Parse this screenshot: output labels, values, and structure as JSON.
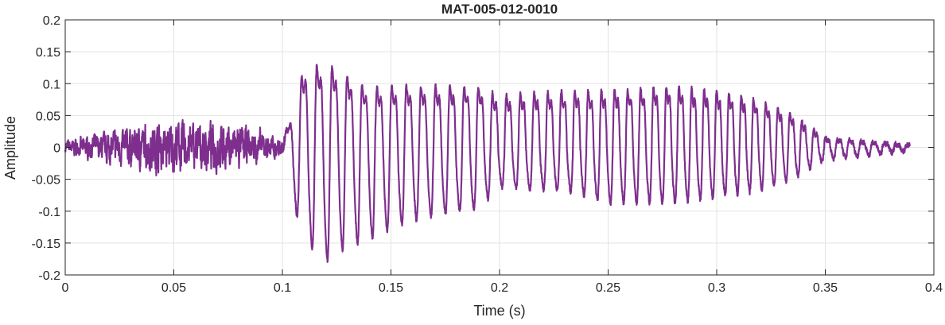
{
  "chart_data": {
    "type": "line",
    "title": "MAT-005-012-0010",
    "xlabel": "Time (s)",
    "ylabel": "Amplitude",
    "xlim": [
      0,
      0.4
    ],
    "ylim": [
      -0.2,
      0.2
    ],
    "grid": true,
    "xticks": [
      0,
      0.05,
      0.1,
      0.15,
      0.2,
      0.25,
      0.3,
      0.35,
      0.4
    ],
    "xtick_labels": [
      "0",
      "0.05",
      "0.1",
      "0.15",
      "0.2",
      "0.25",
      "0.3",
      "0.35",
      "0.4"
    ],
    "yticks": [
      0.2,
      0.15,
      0.1,
      0.05,
      0,
      -0.05,
      -0.1,
      -0.15,
      -0.2
    ],
    "ytick_labels": [
      "0.2",
      "0.15",
      "0.1",
      "0.05",
      "0",
      "-0.05",
      "-0.1",
      "-0.15",
      "-0.2"
    ],
    "line_color": "#7E2F8E",
    "signal_end_time": 0.389,
    "voicing_onset_time": 0.101,
    "envelope": {
      "time": [
        0,
        0.03,
        0.05,
        0.08,
        0.1,
        0.105,
        0.11,
        0.12,
        0.13,
        0.14,
        0.15,
        0.17,
        0.19,
        0.2,
        0.23,
        0.25,
        0.28,
        0.3,
        0.32,
        0.335,
        0.35,
        0.389
      ],
      "upper": [
        0.01,
        0.03,
        0.04,
        0.035,
        0.012,
        0.08,
        0.17,
        0.178,
        0.15,
        0.125,
        0.13,
        0.13,
        0.13,
        0.11,
        0.12,
        0.12,
        0.13,
        0.12,
        0.1,
        0.07,
        0.02,
        0.005
      ],
      "lower": [
        -0.01,
        -0.03,
        -0.04,
        -0.035,
        -0.012,
        -0.09,
        -0.15,
        -0.185,
        -0.16,
        -0.15,
        -0.13,
        -0.11,
        -0.1,
        -0.065,
        -0.07,
        -0.09,
        -0.09,
        -0.08,
        -0.07,
        -0.05,
        -0.02,
        -0.005
      ]
    },
    "fundamental_hz": {
      "time": [
        0.1,
        0.2,
        0.3,
        0.389
      ],
      "f0": [
        140,
        155,
        175,
        190
      ]
    }
  }
}
